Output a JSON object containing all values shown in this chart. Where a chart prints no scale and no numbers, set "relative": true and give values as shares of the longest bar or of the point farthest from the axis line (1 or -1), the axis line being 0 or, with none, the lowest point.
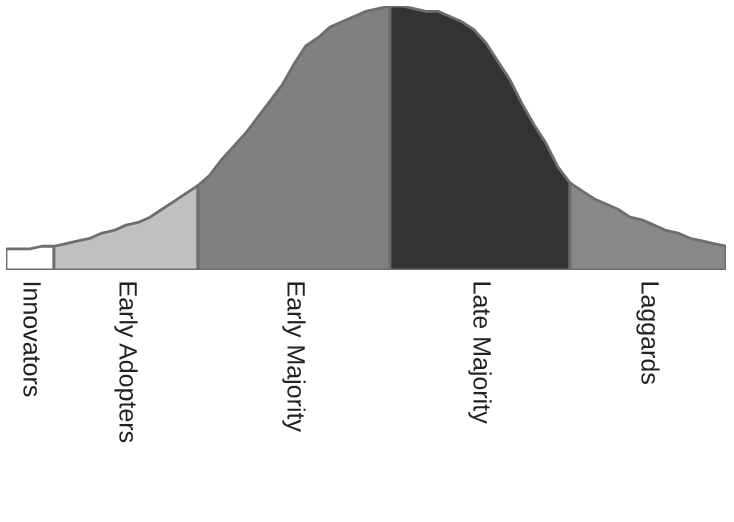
{
  "chart_data": {
    "type": "area",
    "relative": true,
    "legend": false,
    "categories": [
      null,
      null,
      null,
      null,
      null,
      null,
      null,
      null,
      null,
      null,
      null,
      null,
      null,
      null,
      null,
      null,
      null,
      null,
      null,
      null,
      null,
      null,
      null,
      null,
      null,
      null,
      null,
      null,
      null,
      null,
      null,
      null,
      null,
      null,
      null,
      null,
      null,
      null,
      null,
      null,
      null,
      null,
      null,
      null,
      null,
      null,
      null,
      null,
      null,
      null,
      null,
      null,
      null,
      null,
      null,
      null,
      null,
      null,
      null,
      null,
      null
    ],
    "series": [
      {
        "name": "Innovators",
        "color": "#ffffff",
        "values": [
          0.08,
          0.08,
          0.08,
          0.09,
          0.09,
          null,
          null,
          null,
          null,
          null,
          null,
          null,
          null,
          null,
          null,
          null,
          null,
          null,
          null,
          null,
          null,
          null,
          null,
          null,
          null,
          null,
          null,
          null,
          null,
          null,
          null,
          null,
          null,
          null,
          null,
          null,
          null,
          null,
          null,
          null,
          null,
          null,
          null,
          null,
          null,
          null,
          null,
          null,
          null,
          null,
          null,
          null,
          null,
          null,
          null,
          null,
          null,
          null,
          null,
          null,
          null
        ]
      },
      {
        "name": "Early Adopters",
        "color": "#c0c0c0",
        "values": [
          null,
          null,
          null,
          null,
          0.09,
          0.1,
          0.11,
          0.12,
          0.14,
          0.15,
          0.17,
          0.18,
          0.2,
          0.23,
          0.26,
          0.29,
          0.32,
          null,
          null,
          null,
          null,
          null,
          null,
          null,
          null,
          null,
          null,
          null,
          null,
          null,
          null,
          null,
          null,
          null,
          null,
          null,
          null,
          null,
          null,
          null,
          null,
          null,
          null,
          null,
          null,
          null,
          null,
          null,
          null,
          null,
          null,
          null,
          null,
          null,
          null,
          null,
          null,
          null,
          null,
          null,
          null
        ]
      },
      {
        "name": "Early Majority",
        "color": "#808080",
        "values": [
          null,
          null,
          null,
          null,
          null,
          null,
          null,
          null,
          null,
          null,
          null,
          null,
          null,
          null,
          null,
          null,
          0.32,
          0.36,
          0.42,
          0.47,
          0.52,
          0.58,
          0.64,
          0.7,
          0.78,
          0.85,
          0.88,
          0.92,
          0.94,
          0.96,
          0.98,
          0.99,
          1,
          null,
          null,
          null,
          null,
          null,
          null,
          null,
          null,
          null,
          null,
          null,
          null,
          null,
          null,
          null,
          null,
          null,
          null,
          null,
          null,
          null,
          null,
          null,
          null,
          null,
          null,
          null,
          null
        ]
      },
      {
        "name": "Late Majority",
        "color": "#333333",
        "values": [
          null,
          null,
          null,
          null,
          null,
          null,
          null,
          null,
          null,
          null,
          null,
          null,
          null,
          null,
          null,
          null,
          null,
          null,
          null,
          null,
          null,
          null,
          null,
          null,
          null,
          null,
          null,
          null,
          null,
          null,
          null,
          null,
          1,
          1,
          0.99,
          0.98,
          0.98,
          0.96,
          0.94,
          0.91,
          0.86,
          0.79,
          0.72,
          0.63,
          0.55,
          0.48,
          0.39,
          0.33,
          null,
          null,
          null,
          null,
          null,
          null,
          null,
          null,
          null,
          null,
          null,
          null,
          null
        ]
      },
      {
        "name": "Laggards",
        "color": "#888888",
        "values": [
          null,
          null,
          null,
          null,
          null,
          null,
          null,
          null,
          null,
          null,
          null,
          null,
          null,
          null,
          null,
          null,
          null,
          null,
          null,
          null,
          null,
          null,
          null,
          null,
          null,
          null,
          null,
          null,
          null,
          null,
          null,
          null,
          null,
          null,
          null,
          null,
          null,
          null,
          null,
          null,
          null,
          null,
          null,
          null,
          null,
          null,
          null,
          0.33,
          0.3,
          0.27,
          0.25,
          0.23,
          0.2,
          0.19,
          0.17,
          0.15,
          0.14,
          0.12,
          0.11,
          0.1,
          0.09
        ]
      }
    ]
  }
}
